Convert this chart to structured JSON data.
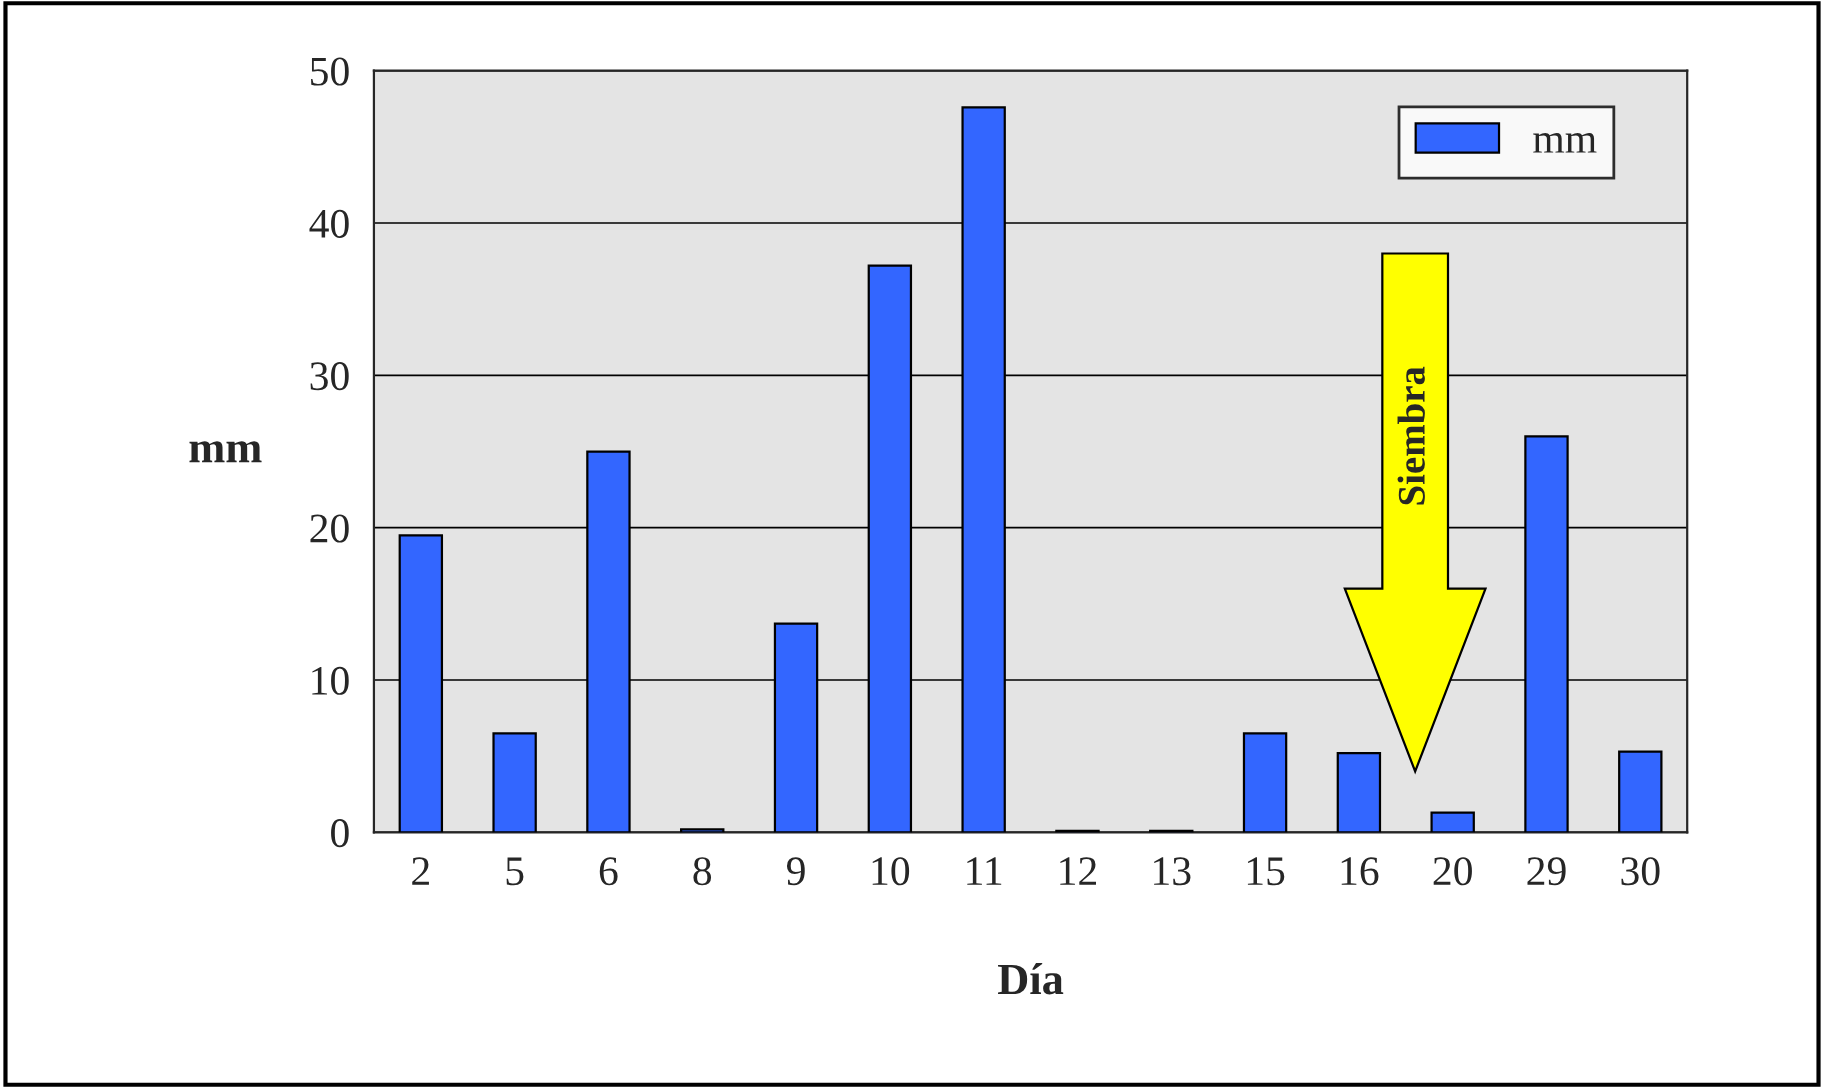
{
  "chart_data": {
    "type": "bar",
    "categories": [
      "2",
      "5",
      "6",
      "8",
      "9",
      "10",
      "11",
      "12",
      "13",
      "15",
      "16",
      "20",
      "29",
      "30"
    ],
    "series": [
      {
        "name": "mm",
        "color": "#3366ff",
        "values": [
          19.5,
          6.5,
          25,
          0.2,
          13.7,
          37.2,
          47.6,
          0.1,
          0.1,
          6.5,
          5.2,
          1.3,
          26,
          5.3
        ]
      }
    ],
    "xlabel": "Día",
    "ylabel": "mm",
    "ylim": [
      0,
      50
    ],
    "yticks": [
      0,
      10,
      20,
      30,
      40,
      50
    ],
    "grid": "y",
    "legend": "top right",
    "annotations": [
      "Siembra"
    ]
  }
}
